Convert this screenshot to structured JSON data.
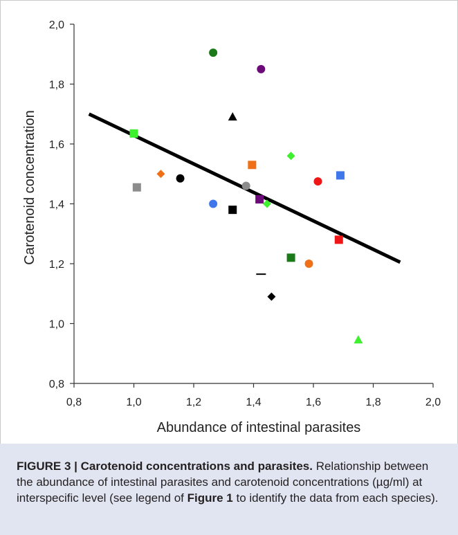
{
  "figure": {
    "label": "FIGURE 3 | Carotenoid concentrations and parasites.",
    "caption_part1": " Relationship between the abundance of intestinal parasites and carotenoid concentrations (µg/ml) at interspecific level (see legend of ",
    "caption_ref": "Figure 1",
    "caption_part2": " to identify the data from each species)."
  },
  "chart_data": {
    "type": "scatter",
    "title": "",
    "xlabel": "Abundance of intestinal parasites",
    "ylabel": "Carotenoid concentration",
    "xlim": [
      0.8,
      2.0
    ],
    "ylim": [
      0.8,
      2.0
    ],
    "xticks": [
      "0,8",
      "1,0",
      "1,2",
      "1,4",
      "1,6",
      "1,8",
      "2,0"
    ],
    "yticks": [
      "0,8",
      "1,0",
      "1,2",
      "1,4",
      "1,6",
      "1,8",
      "2,0"
    ],
    "grid": false,
    "trend_line": {
      "x": [
        0.85,
        1.89
      ],
      "y": [
        1.7,
        1.205
      ]
    },
    "points": [
      {
        "x": 1.0,
        "y": 1.635,
        "marker": "square",
        "color": "#3ef02e"
      },
      {
        "x": 1.01,
        "y": 1.455,
        "marker": "square",
        "color": "#8c8c8c"
      },
      {
        "x": 1.09,
        "y": 1.5,
        "marker": "diamond",
        "color": "#f07018"
      },
      {
        "x": 1.155,
        "y": 1.485,
        "marker": "circle",
        "color": "#000000"
      },
      {
        "x": 1.265,
        "y": 1.905,
        "marker": "circle",
        "color": "#1a7a1a"
      },
      {
        "x": 1.265,
        "y": 1.4,
        "marker": "circle",
        "color": "#3f77ea"
      },
      {
        "x": 1.33,
        "y": 1.69,
        "marker": "triangle",
        "color": "#000000"
      },
      {
        "x": 1.33,
        "y": 1.38,
        "marker": "square",
        "color": "#000000"
      },
      {
        "x": 1.375,
        "y": 1.46,
        "marker": "circle",
        "color": "#8c8c8c"
      },
      {
        "x": 1.395,
        "y": 1.53,
        "marker": "square",
        "color": "#f07018"
      },
      {
        "x": 1.425,
        "y": 1.85,
        "marker": "circle",
        "color": "#6b0a78"
      },
      {
        "x": 1.42,
        "y": 1.415,
        "marker": "square",
        "color": "#6b0a78"
      },
      {
        "x": 1.445,
        "y": 1.4,
        "marker": "diamond",
        "color": "#3ef02e"
      },
      {
        "x": 1.425,
        "y": 1.165,
        "marker": "dash",
        "color": "#000000"
      },
      {
        "x": 1.46,
        "y": 1.09,
        "marker": "diamond",
        "color": "#000000"
      },
      {
        "x": 1.525,
        "y": 1.56,
        "marker": "diamond",
        "color": "#3ef02e"
      },
      {
        "x": 1.525,
        "y": 1.22,
        "marker": "square",
        "color": "#1a7a1a"
      },
      {
        "x": 1.585,
        "y": 1.2,
        "marker": "circle",
        "color": "#f07018"
      },
      {
        "x": 1.615,
        "y": 1.475,
        "marker": "circle",
        "color": "#ee1616"
      },
      {
        "x": 1.685,
        "y": 1.28,
        "marker": "square",
        "color": "#ee1616"
      },
      {
        "x": 1.69,
        "y": 1.495,
        "marker": "square",
        "color": "#3f77ea"
      },
      {
        "x": 1.75,
        "y": 0.945,
        "marker": "triangle",
        "color": "#3ef02e"
      }
    ]
  }
}
